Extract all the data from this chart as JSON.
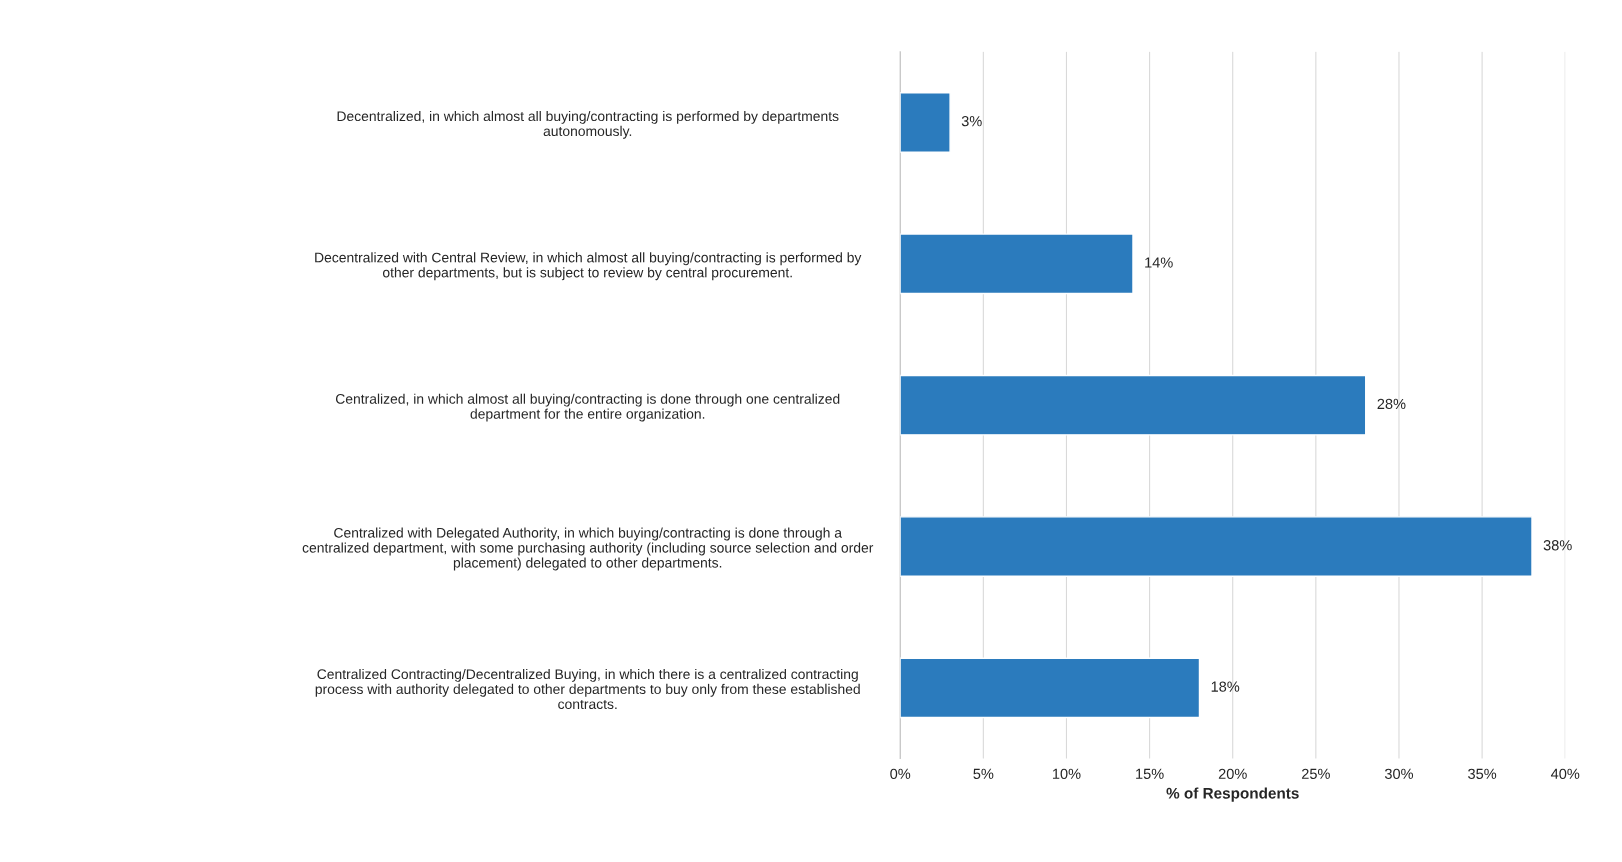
{
  "chart_data": {
    "type": "bar",
    "orientation": "horizontal",
    "xlabel": "% of Respondents",
    "categories": [
      "Decentralized, in which almost all buying/contracting is performed by departments\nautonomously.",
      "Decentralized with Central Review, in which almost all buying/contracting is performed by\nother departments, but is subject to review by central procurement.",
      "Centralized, in which almost all buying/contracting is done through one centralized\ndepartment for the entire organization.",
      "Centralized with Delegated Authority, in which buying/contracting is done through a\ncentralized department, with some purchasing authority (including source selection and order\nplacement) delegated to other departments.",
      "Centralized Contracting/Decentralized Buying, in which there is a centralized contracting\nprocess with authority delegated to other departments to buy only from these established\ncontracts."
    ],
    "values": [
      3,
      14,
      28,
      38,
      18
    ],
    "value_labels": [
      "3%",
      "14%",
      "28%",
      "38%",
      "18%"
    ],
    "color": "#2b7bbd",
    "xlim": [
      0,
      40
    ],
    "xticks": [
      {
        "value": 0,
        "label": "0%"
      },
      {
        "value": 5,
        "label": "5%"
      },
      {
        "value": 10,
        "label": "10%"
      },
      {
        "value": 15,
        "label": "15%"
      },
      {
        "value": 20,
        "label": "20%"
      },
      {
        "value": 25,
        "label": "25%"
      },
      {
        "value": 30,
        "label": "30%"
      },
      {
        "value": 35,
        "label": "35%"
      },
      {
        "value": 40,
        "label": "40%"
      }
    ],
    "grid": "x"
  }
}
